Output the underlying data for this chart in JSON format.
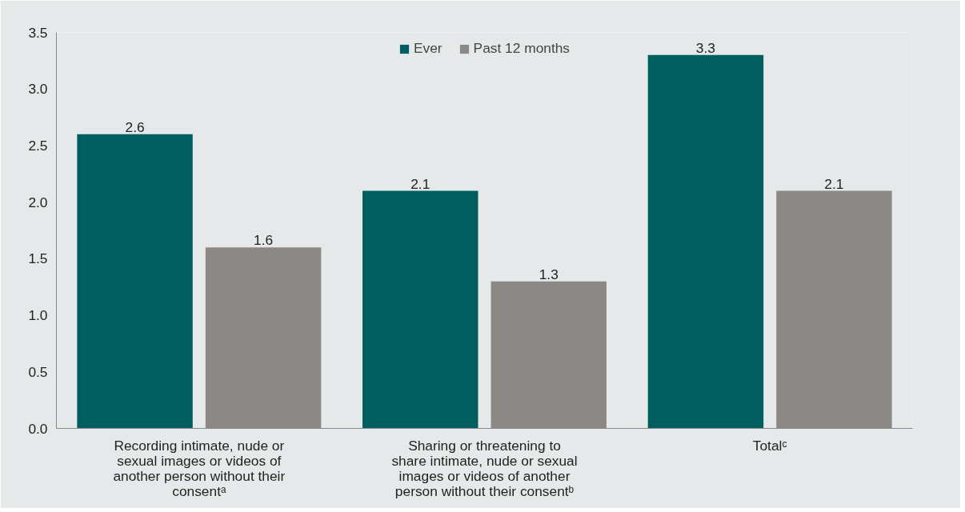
{
  "chart_data": {
    "type": "bar",
    "categories": [
      "Recording intimate, nude or sexual images or videos of another person without their consentᵃ",
      "Sharing or threatening to share intimate, nude or sexual images or videos of another person without their consentᵇ",
      "Totalᶜ"
    ],
    "series": [
      {
        "name": "Ever",
        "color": "#005e60",
        "values": [
          2.6,
          2.1,
          3.3
        ]
      },
      {
        "name": "Past 12 months",
        "color": "#8c8886",
        "values": [
          1.6,
          1.3,
          2.1
        ]
      }
    ],
    "ylim": [
      0,
      3.5
    ],
    "yticks": [
      {
        "value": 0,
        "label": "0.0"
      },
      {
        "value": 0.5,
        "label": "0.5"
      },
      {
        "value": 1,
        "label": "1.0"
      },
      {
        "value": 1.5,
        "label": "1.5"
      },
      {
        "value": 2,
        "label": "2.0"
      },
      {
        "value": 2.5,
        "label": "2.5"
      },
      {
        "value": 3,
        "label": "3.0"
      },
      {
        "value": 3.5,
        "label": "3.5"
      }
    ],
    "data_labels": true,
    "legend": "top"
  }
}
